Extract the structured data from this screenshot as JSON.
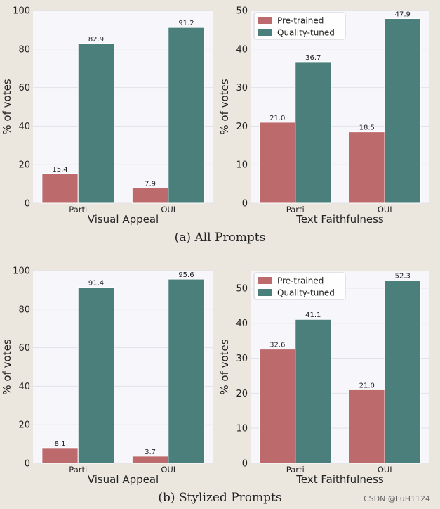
{
  "captions": {
    "a": "(a) All Prompts",
    "b": "(b) Stylized Prompts"
  },
  "watermark": "CSDN @LuH1124",
  "colors": {
    "pretrained": "#bd6a6c",
    "quality_tuned": "#4a7f7b",
    "plot_background": "#f6f6fb",
    "grid": "#e2e2ea"
  },
  "chart_data": [
    {
      "type": "bar",
      "categories": [
        "Parti",
        "OUI"
      ],
      "series": [
        {
          "values": [
            15.4,
            7.9
          ]
        },
        {
          "values": [
            82.9,
            91.2
          ]
        }
      ],
      "xlabel": "Visual Appeal",
      "ylabel": "% of votes",
      "ylim": [
        0,
        100
      ],
      "yticks": [
        0,
        20,
        40,
        60,
        80,
        100
      ],
      "legend": null,
      "grid": true
    },
    {
      "type": "bar",
      "categories": [
        "Parti",
        "OUI"
      ],
      "series": [
        {
          "name": "Pre-trained",
          "values": [
            21.0,
            18.5
          ]
        },
        {
          "name": "Quality-tuned",
          "values": [
            36.7,
            47.9
          ]
        }
      ],
      "xlabel": "Text Faithfulness",
      "ylabel": "% of votes",
      "ylim": [
        0,
        50
      ],
      "yticks": [
        0,
        10,
        20,
        30,
        40,
        50
      ],
      "legend": "top-left",
      "grid": true
    },
    {
      "type": "bar",
      "categories": [
        "Parti",
        "OUI"
      ],
      "series": [
        {
          "values": [
            8.1,
            3.7
          ]
        },
        {
          "values": [
            91.4,
            95.6
          ]
        }
      ],
      "xlabel": "Visual Appeal",
      "ylabel": "% of votes",
      "ylim": [
        0,
        100
      ],
      "yticks": [
        0,
        20,
        40,
        60,
        80,
        100
      ],
      "legend": null,
      "grid": true
    },
    {
      "type": "bar",
      "categories": [
        "Parti",
        "OUI"
      ],
      "series": [
        {
          "name": "Pre-trained",
          "values": [
            32.6,
            21.0
          ]
        },
        {
          "name": "Quality-tuned",
          "values": [
            41.1,
            52.3
          ]
        }
      ],
      "xlabel": "Text Faithfulness",
      "ylabel": "% of votes",
      "ylim": [
        0,
        55
      ],
      "yticks": [
        0,
        10,
        20,
        30,
        40,
        50
      ],
      "legend": "top-left",
      "grid": true
    }
  ]
}
